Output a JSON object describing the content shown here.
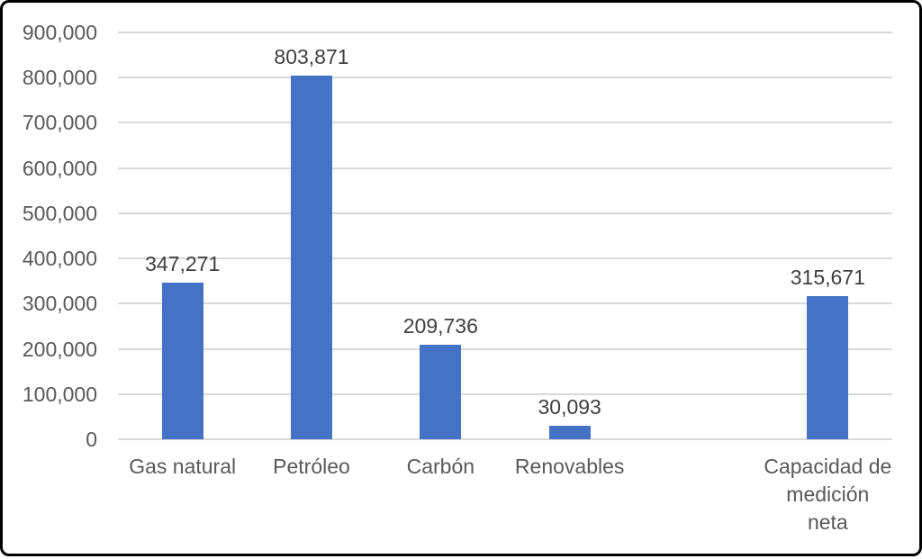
{
  "chart_data": {
    "type": "bar",
    "title": "",
    "xlabel": "",
    "ylabel": "",
    "categories": [
      "Gas natural",
      "Petróleo",
      "Carbón",
      "Renovables",
      "",
      "Capacidad de medición neta"
    ],
    "category_lines": [
      [
        "Gas natural"
      ],
      [
        "Petróleo"
      ],
      [
        "Carbón"
      ],
      [
        "Renovables"
      ],
      [],
      [
        "Capacidad de",
        "medición",
        "neta"
      ]
    ],
    "values": [
      347271,
      803871,
      209736,
      30093,
      null,
      315671
    ],
    "data_labels": [
      "347,271",
      "803,871",
      "209,736",
      "30,093",
      "",
      "315,671"
    ],
    "ylim": [
      0,
      900000
    ],
    "y_tick_step": 100000,
    "y_tick_labels": [
      "0",
      "100,000",
      "200,000",
      "300,000",
      "400,000",
      "500,000",
      "600,000",
      "700,000",
      "800,000",
      "900,000"
    ],
    "grid": true,
    "legend": "none",
    "colors": {
      "bar": "#4472C4",
      "gridline": "#D9D9D9",
      "axis_label": "#595959",
      "data_label": "#404040",
      "frame_border": "#000000",
      "background": "#FFFFFF"
    }
  }
}
